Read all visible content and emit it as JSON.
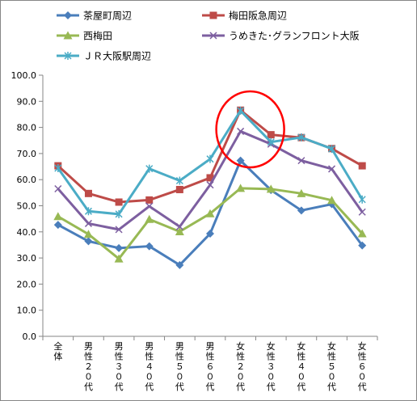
{
  "chart_data": {
    "type": "line",
    "title": "",
    "xlabel": "",
    "ylabel": "",
    "ylim": [
      0,
      100
    ],
    "ytick_step": 10,
    "ytick_labels": [
      "0.0",
      "10.0",
      "20.0",
      "30.0",
      "40.0",
      "50.0",
      "60.0",
      "70.0",
      "80.0",
      "90.0",
      "100.0"
    ],
    "grid": false,
    "legend_position": "top",
    "categories": [
      "全体",
      "男性２０代",
      "男性３０代",
      "男性４０代",
      "男性５０代",
      "男性６０代",
      "女性２０代",
      "女性３０代",
      "女性４０代",
      "女性５０代",
      "女性６０代"
    ],
    "category_label_chars": [
      [
        "全",
        "体"
      ],
      [
        "男",
        "性",
        "２",
        "０",
        "代"
      ],
      [
        "男",
        "性",
        "３",
        "０",
        "代"
      ],
      [
        "男",
        "性",
        "４",
        "０",
        "代"
      ],
      [
        "男",
        "性",
        "５",
        "０",
        "代"
      ],
      [
        "男",
        "性",
        "６",
        "０",
        "代"
      ],
      [
        "女",
        "性",
        "２",
        "０",
        "代"
      ],
      [
        "女",
        "性",
        "３",
        "０",
        "代"
      ],
      [
        "女",
        "性",
        "４",
        "０",
        "代"
      ],
      [
        "女",
        "性",
        "５",
        "０",
        "代"
      ],
      [
        "女",
        "性",
        "６",
        "０",
        "代"
      ]
    ],
    "series": [
      {
        "name": "茶屋町周辺",
        "color": "#4a7ebb",
        "marker": "diamond",
        "values": [
          42.7,
          36.4,
          33.8,
          34.5,
          27.3,
          39.3,
          67.3,
          56.0,
          48.2,
          50.6,
          34.8
        ]
      },
      {
        "name": "梅田阪急周辺",
        "color": "#be4b48",
        "marker": "square",
        "values": [
          65.3,
          54.7,
          51.4,
          52.2,
          56.2,
          60.7,
          86.6,
          77.2,
          76.1,
          71.9,
          65.3
        ]
      },
      {
        "name": "西梅田",
        "color": "#98b954",
        "marker": "triangle",
        "values": [
          45.9,
          39.1,
          29.7,
          44.8,
          40.1,
          47.0,
          56.7,
          56.4,
          54.7,
          52.1,
          39.3
        ]
      },
      {
        "name": "うめきた･グランフロント大阪",
        "color": "#7d5fa0",
        "marker": "x",
        "values": [
          56.5,
          43.2,
          40.9,
          49.8,
          42.0,
          58.0,
          78.5,
          73.6,
          67.3,
          64.1,
          47.6
        ]
      },
      {
        "name": "ＪＲ大阪駅周辺",
        "color": "#4bacc6",
        "marker": "star",
        "values": [
          64.4,
          47.9,
          46.8,
          64.2,
          59.6,
          67.9,
          86.4,
          74.4,
          76.2,
          71.8,
          52.4
        ]
      }
    ],
    "annotations": [
      {
        "type": "ellipse",
        "color": "#ff0000",
        "around_category": "女性２０代"
      }
    ]
  }
}
